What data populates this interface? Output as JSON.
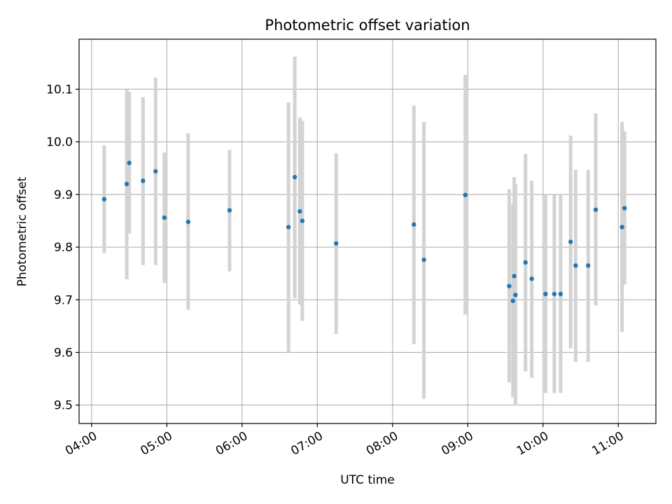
{
  "chart_data": {
    "type": "scatter",
    "title": "Photometric offset variation",
    "xlabel": "UTC time",
    "ylabel": "Photometric offset",
    "grid": true,
    "xlim": [
      "03:50",
      "11:30"
    ],
    "ylim": [
      9.465,
      10.195
    ],
    "x_ticks": [
      "04:00",
      "05:00",
      "06:00",
      "07:00",
      "08:00",
      "09:00",
      "10:00",
      "11:00"
    ],
    "y_ticks": [
      9.5,
      9.6,
      9.7,
      9.8,
      9.9,
      10.0,
      10.1
    ],
    "y_tick_labels": [
      "9.5",
      "9.6",
      "9.7",
      "9.8",
      "9.9",
      "10.0",
      "10.1"
    ],
    "errorbar_color": "#d3d3d3",
    "point_color": "#1f77b4",
    "points": [
      {
        "x": "04:10",
        "y": 9.891,
        "ylow": 9.789,
        "yhigh": 9.993
      },
      {
        "x": "04:28",
        "y": 9.92,
        "ylow": 9.739,
        "yhigh": 10.099
      },
      {
        "x": "04:30",
        "y": 9.96,
        "ylow": 9.826,
        "yhigh": 10.095
      },
      {
        "x": "04:41",
        "y": 9.926,
        "ylow": 9.766,
        "yhigh": 10.085
      },
      {
        "x": "04:51",
        "y": 9.944,
        "ylow": 9.766,
        "yhigh": 10.122
      },
      {
        "x": "04:58",
        "y": 9.856,
        "ylow": 9.732,
        "yhigh": 9.98
      },
      {
        "x": "05:17",
        "y": 9.848,
        "ylow": 9.681,
        "yhigh": 10.016
      },
      {
        "x": "05:50",
        "y": 9.87,
        "ylow": 9.754,
        "yhigh": 9.985
      },
      {
        "x": "06:37",
        "y": 9.838,
        "ylow": 9.6,
        "yhigh": 10.075
      },
      {
        "x": "06:42",
        "y": 9.933,
        "ylow": 9.703,
        "yhigh": 10.162
      },
      {
        "x": "06:46",
        "y": 9.868,
        "ylow": 9.691,
        "yhigh": 10.046
      },
      {
        "x": "06:48",
        "y": 9.85,
        "ylow": 9.66,
        "yhigh": 10.04
      },
      {
        "x": "07:15",
        "y": 9.807,
        "ylow": 9.635,
        "yhigh": 9.978
      },
      {
        "x": "08:17",
        "y": 9.843,
        "ylow": 9.616,
        "yhigh": 10.069
      },
      {
        "x": "08:25",
        "y": 9.776,
        "ylow": 9.512,
        "yhigh": 10.038
      },
      {
        "x": "08:58",
        "y": 9.899,
        "ylow": 9.672,
        "yhigh": 10.127
      },
      {
        "x": "09:33",
        "y": 9.726,
        "ylow": 9.543,
        "yhigh": 9.91
      },
      {
        "x": "09:36",
        "y": 9.698,
        "ylow": 9.515,
        "yhigh": 9.882
      },
      {
        "x": "09:37",
        "y": 9.745,
        "ylow": 9.557,
        "yhigh": 9.933
      },
      {
        "x": "09:38",
        "y": 9.709,
        "ylow": 9.499,
        "yhigh": 9.92
      },
      {
        "x": "09:46",
        "y": 9.771,
        "ylow": 9.564,
        "yhigh": 9.977
      },
      {
        "x": "09:51",
        "y": 9.74,
        "ylow": 9.552,
        "yhigh": 9.926
      },
      {
        "x": "10:02",
        "y": 9.711,
        "ylow": 9.523,
        "yhigh": 9.9
      },
      {
        "x": "10:09",
        "y": 9.711,
        "ylow": 9.523,
        "yhigh": 9.9
      },
      {
        "x": "10:14",
        "y": 9.711,
        "ylow": 9.523,
        "yhigh": 9.9
      },
      {
        "x": "10:22",
        "y": 9.81,
        "ylow": 9.608,
        "yhigh": 10.012
      },
      {
        "x": "10:26",
        "y": 9.765,
        "ylow": 9.582,
        "yhigh": 9.947
      },
      {
        "x": "10:36",
        "y": 9.765,
        "ylow": 9.582,
        "yhigh": 9.947
      },
      {
        "x": "10:42",
        "y": 9.871,
        "ylow": 9.689,
        "yhigh": 10.054
      },
      {
        "x": "11:03",
        "y": 9.838,
        "ylow": 9.639,
        "yhigh": 10.038
      },
      {
        "x": "11:05",
        "y": 9.874,
        "ylow": 9.729,
        "yhigh": 10.02
      }
    ]
  }
}
